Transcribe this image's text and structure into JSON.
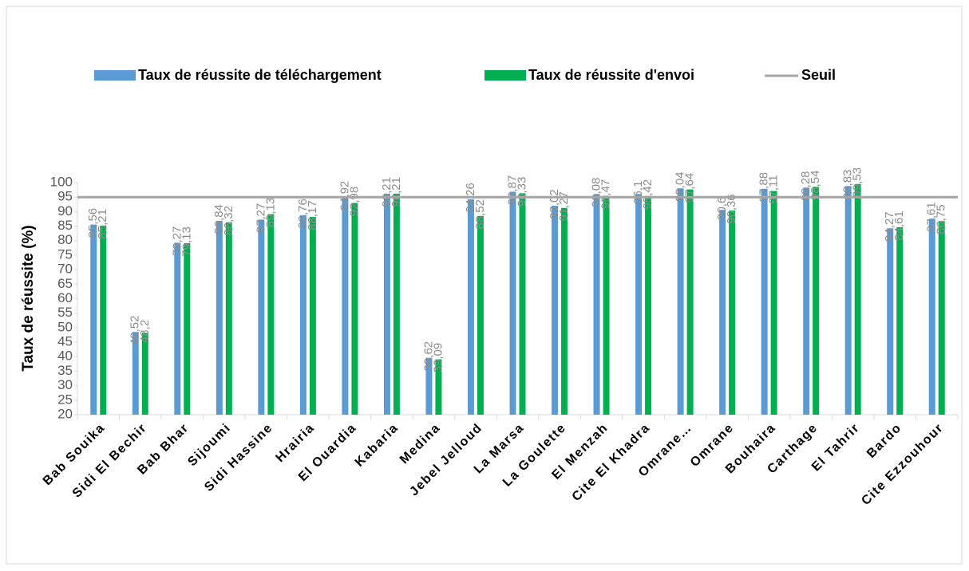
{
  "chart_data": {
    "type": "bar",
    "categories": [
      "Bab Souika",
      "Sidi El Bechir",
      "Bab Bhar",
      "Sijoumi",
      "Sidi Hassine",
      "Hrairia",
      "El Ouardia",
      "Kabaria",
      "Medina",
      "Jebel Jelloud",
      "La Marsa",
      "La Goulette",
      "El Menzah",
      "Cite El Khadra",
      "Omrane…",
      "Omrane",
      "Bouhaira",
      "Carthage",
      "El Tahrir",
      "Bardo",
      "Cite Ezzouhour"
    ],
    "series": [
      {
        "name": "Taux de réussite de téléchargement",
        "color": "#5b9bd5",
        "values": [
          85.56,
          48.52,
          79.27,
          86.84,
          87.27,
          88.76,
          94.92,
          96.21,
          39.62,
          94.26,
          96.87,
          92.02,
          96.08,
          96.1,
          98.04,
          90.6,
          97.88,
          98.28,
          98.83,
          84.27,
          87.61
        ],
        "value_labels": [
          "85,56",
          "48,52",
          "79,27",
          "86,84",
          "87,27",
          "88,76",
          "94,92",
          "96,21",
          "39,62",
          "94,26",
          "96,87",
          "92,02",
          "96,08",
          "96,1",
          "98,04",
          "90,6",
          "97,88",
          "98,28",
          "98,83",
          "84,27",
          "87,61"
        ]
      },
      {
        "name": "Taux de réussite d'envoi",
        "color": "#00b050",
        "values": [
          85.21,
          48.2,
          79.13,
          86.32,
          89.13,
          88.17,
          92.98,
          96.21,
          39.09,
          88.52,
          96.33,
          91.27,
          95.47,
          95.42,
          97.64,
          90.36,
          97.11,
          98.54,
          99.53,
          84.61,
          86.75
        ],
        "value_labels": [
          "85,21",
          "48,2",
          "79,13",
          "86,32",
          "89,13",
          "88,17",
          "92,98",
          "96,21",
          "39,09",
          "88,52",
          "96,33",
          "91,27",
          "95,47",
          "95,42",
          "97,64",
          "90,36",
          "97,11",
          "98,54",
          "99,53",
          "84,61",
          "86,75"
        ]
      }
    ],
    "threshold": {
      "name": "Seuil",
      "value": 95,
      "color": "#a5a5a5"
    },
    "y_label": "Taux de réussite (%)",
    "ylim": [
      20,
      100
    ],
    "yticks": [
      20,
      25,
      30,
      35,
      40,
      45,
      50,
      55,
      60,
      65,
      70,
      75,
      80,
      85,
      90,
      95,
      100
    ]
  }
}
